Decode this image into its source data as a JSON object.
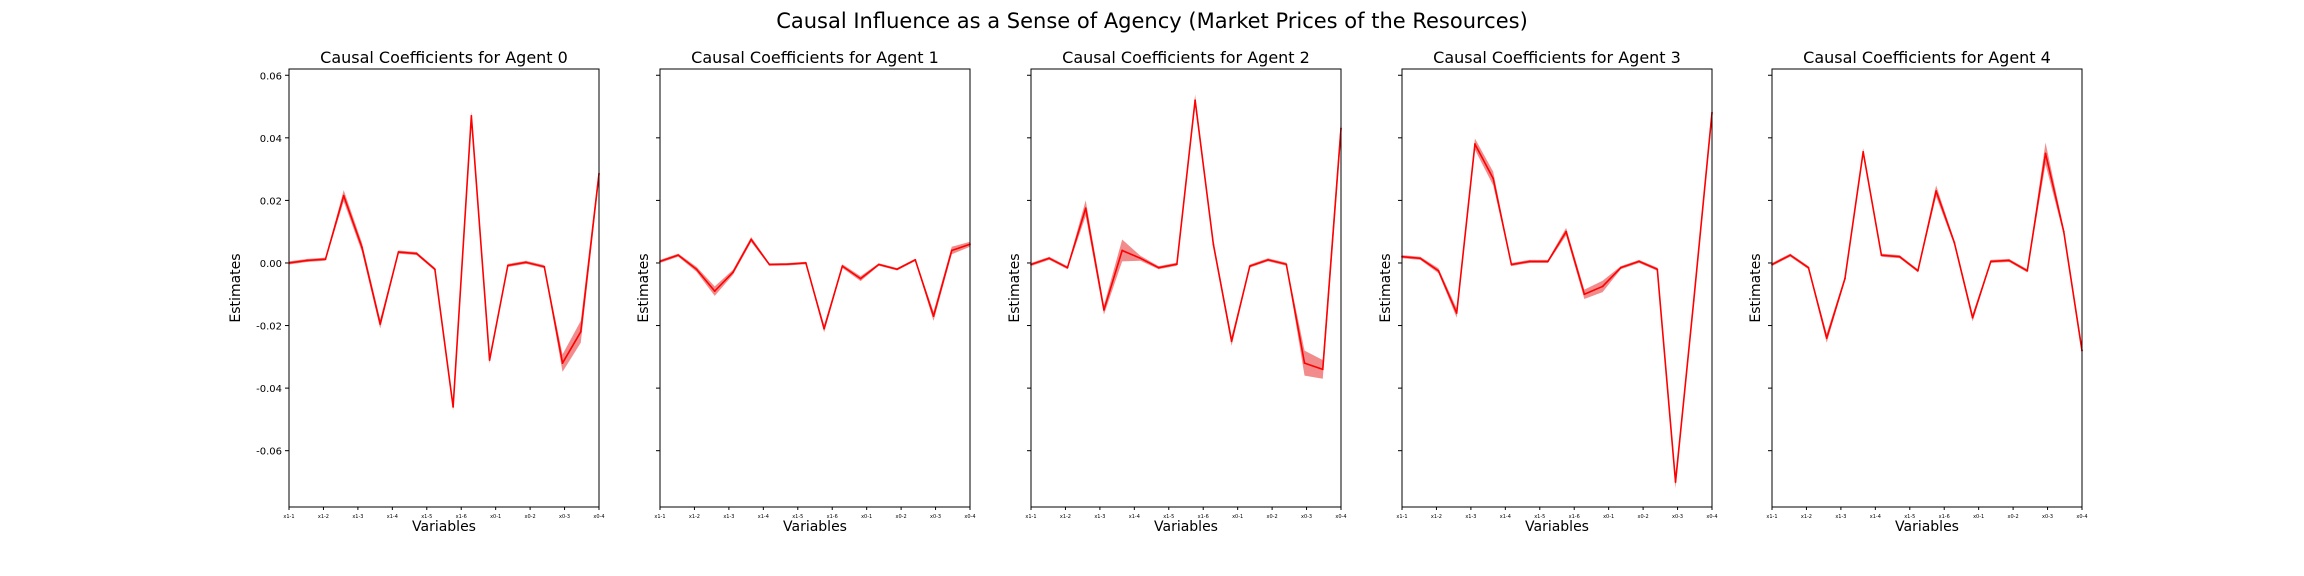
{
  "suptitle": "Causal Influence as a Sense of Agency (Market Prices of the Resources)",
  "colors": {
    "line": "#ff0000",
    "band": "#f07878",
    "axis": "#000000"
  },
  "chart_data": [
    {
      "type": "line",
      "title": "Causal Coefficients for Agent 0",
      "xlabel": "Variables",
      "ylabel": "Estimates",
      "ylim": [
        -0.078,
        0.062
      ],
      "yticks": [
        "0.06",
        "0.04",
        "0.02",
        "0.00",
        "-0.02",
        "-0.04",
        "-0.06"
      ],
      "xticks": [
        "x1-1",
        "x1-2",
        "x1-3",
        "x1-4",
        "x1-5",
        "x1-6",
        "x0-1",
        "x0-2",
        "x0-3",
        "x0-4"
      ],
      "series": [
        {
          "values": [
            0.0,
            0.0008,
            0.0012,
            0.0215,
            0.005,
            -0.0195,
            0.0035,
            0.003,
            -0.002,
            -0.046,
            0.047,
            -0.031,
            -0.0008,
            0.0002,
            -0.0012,
            -0.032,
            -0.022,
            0.0285
          ],
          "band": [
            0.0005,
            0.0005,
            0.0005,
            0.0018,
            0.0015,
            0.0015,
            0.0005,
            0.0005,
            0.0005,
            0.0012,
            0.0015,
            0.0012,
            0.0005,
            0.0005,
            0.0005,
            0.0028,
            0.0035,
            0.0018
          ]
        }
      ]
    },
    {
      "type": "line",
      "title": "Causal Coefficients for Agent 1",
      "xlabel": "Variables",
      "ylabel": "Estimates",
      "ylim": [
        -0.078,
        0.062
      ],
      "yticks": [],
      "xticks": [
        "x1-1",
        "x1-2",
        "x1-3",
        "x1-4",
        "x1-5",
        "x1-6",
        "x0-1",
        "x0-2",
        "x0-3",
        "x0-4"
      ],
      "series": [
        {
          "values": [
            0.0005,
            0.0025,
            -0.002,
            -0.009,
            -0.003,
            0.0075,
            -0.0005,
            -0.0004,
            0.0,
            -0.021,
            -0.001,
            -0.005,
            -0.0005,
            -0.002,
            0.001,
            -0.017,
            0.004,
            0.006
          ],
          "band": [
            0.0005,
            0.0005,
            0.0008,
            0.0015,
            0.0008,
            0.0008,
            0.0004,
            0.0004,
            0.0004,
            0.0012,
            0.0006,
            0.0008,
            0.0004,
            0.0004,
            0.0004,
            0.0015,
            0.0012,
            0.0008
          ]
        }
      ]
    },
    {
      "type": "line",
      "title": "Causal Coefficients for Agent 2",
      "xlabel": "Variables",
      "ylabel": "Estimates",
      "ylim": [
        -0.078,
        0.062
      ],
      "yticks": [],
      "xticks": [
        "x1-1",
        "x1-2",
        "x1-3",
        "x1-4",
        "x1-5",
        "x1-6",
        "x0-1",
        "x0-2",
        "x0-3",
        "x0-4"
      ],
      "series": [
        {
          "values": [
            -0.0005,
            0.0015,
            -0.0015,
            0.0175,
            -0.015,
            0.004,
            0.0015,
            -0.0015,
            -0.0004,
            0.052,
            0.006,
            -0.025,
            -0.001,
            0.001,
            -0.0004,
            -0.032,
            -0.034,
            0.043
          ],
          "band": [
            0.0005,
            0.0005,
            0.0005,
            0.0025,
            0.0015,
            0.0035,
            0.0008,
            0.0005,
            0.0005,
            0.0018,
            0.001,
            0.0015,
            0.0005,
            0.0005,
            0.0005,
            0.004,
            0.003,
            0.003
          ]
        }
      ]
    },
    {
      "type": "line",
      "title": "Causal Coefficients for Agent 3",
      "xlabel": "Variables",
      "ylabel": "Estimates",
      "ylim": [
        -0.078,
        0.062
      ],
      "yticks": [],
      "xticks": [
        "x1-1",
        "x1-2",
        "x1-3",
        "x1-4",
        "x1-5",
        "x1-6",
        "x0-1",
        "x0-2",
        "x0-3",
        "x0-4"
      ],
      "series": [
        {
          "values": [
            0.002,
            0.0015,
            -0.0025,
            -0.016,
            0.038,
            0.027,
            -0.0005,
            0.0005,
            0.0005,
            0.01,
            -0.01,
            -0.0075,
            -0.0015,
            0.0005,
            -0.002,
            -0.07,
            -0.012,
            0.048
          ],
          "band": [
            0.0005,
            0.0005,
            0.0008,
            0.0015,
            0.0018,
            0.0022,
            0.0005,
            0.0005,
            0.0005,
            0.0012,
            0.0015,
            0.0018,
            0.0005,
            0.0005,
            0.0005,
            0.002,
            0.0012,
            0.002
          ]
        }
      ]
    },
    {
      "type": "line",
      "title": "Causal Coefficients for Agent 4",
      "xlabel": "Variables",
      "ylabel": "Estimates",
      "ylim": [
        -0.078,
        0.062
      ],
      "yticks": [],
      "xticks": [
        "x1-1",
        "x1-2",
        "x1-3",
        "x1-4",
        "x1-5",
        "x1-6",
        "x0-1",
        "x0-2",
        "x0-3",
        "x0-4"
      ],
      "series": [
        {
          "values": [
            -0.0005,
            0.0025,
            -0.0015,
            -0.024,
            -0.005,
            0.0355,
            0.0025,
            0.002,
            -0.0025,
            0.023,
            0.0065,
            -0.0175,
            0.0005,
            0.0008,
            -0.0025,
            0.035,
            0.01,
            -0.028
          ],
          "band": [
            0.0005,
            0.0005,
            0.0005,
            0.0015,
            0.0008,
            0.0012,
            0.0005,
            0.0005,
            0.0005,
            0.0018,
            0.0008,
            0.0012,
            0.0005,
            0.0005,
            0.0005,
            0.0035,
            0.001,
            0.0015
          ]
        }
      ]
    }
  ]
}
